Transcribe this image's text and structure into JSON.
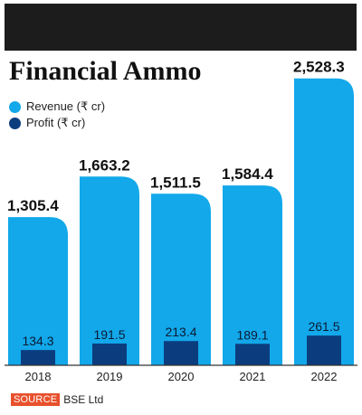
{
  "title": "Financial Ammo",
  "source": {
    "tag": "SOURCE",
    "text": "BSE Ltd"
  },
  "colors": {
    "revenue": "#12a8ea",
    "profit": "#0b3d7e",
    "header": "#1c1c1c",
    "source_tag": "#e8502c"
  },
  "chart_data": {
    "type": "bar",
    "title": "Financial Ammo",
    "categories": [
      "2018",
      "2019",
      "2020",
      "2021",
      "2022"
    ],
    "series": [
      {
        "name": "Revenue (₹ cr)",
        "values": [
          1305.4,
          1663.2,
          1511.5,
          1584.4,
          2528.3
        ],
        "labels": [
          "1,305.4",
          "1,663.2",
          "1,511.5",
          "1,584.4",
          "2,528.3"
        ]
      },
      {
        "name": "Profit (₹ cr)",
        "values": [
          134.3,
          191.5,
          213.4,
          189.1,
          261.5
        ],
        "labels": [
          "134.3",
          "191.5",
          "213.4",
          "189.1",
          "261.5"
        ]
      }
    ],
    "legend": "top-left",
    "grid": false
  }
}
